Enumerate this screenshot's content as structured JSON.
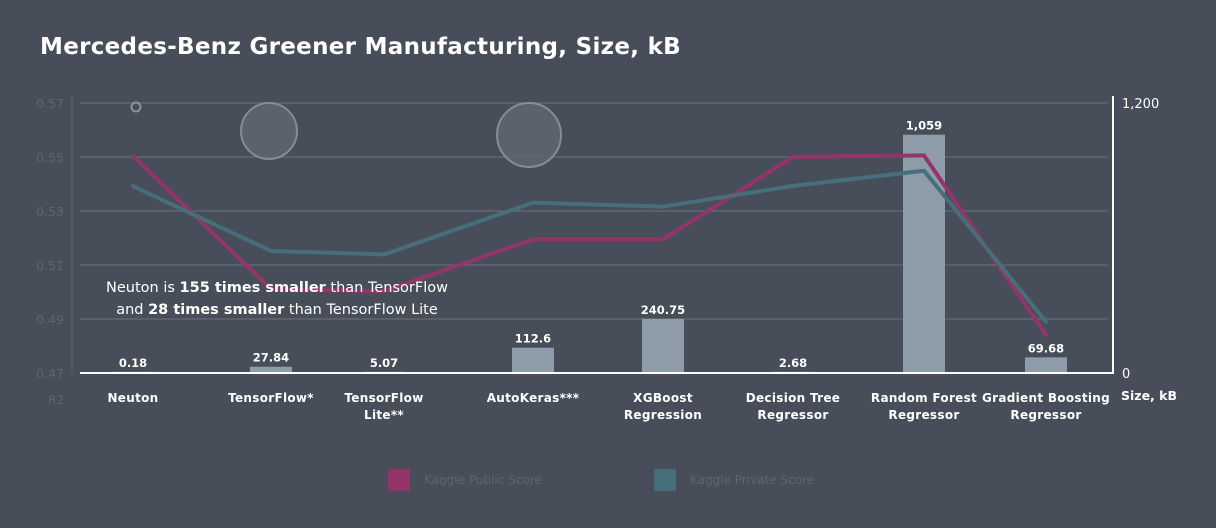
{
  "title": "Mercedes-Benz Greener Manufacturing, Size, kB",
  "annotation": {
    "line1_pre": "Neuton is ",
    "line1_bold": "155 times smaller",
    "line1_post": " than TensorFlow",
    "line2_pre": "and ",
    "line2_bold": "28 times smaller",
    "line2_post": " than TensorFlow Lite"
  },
  "colors": {
    "background": "#474e59",
    "public_score": "#93356a",
    "private_score": "#466f7b",
    "bar": "#8e9ba8",
    "axis_text": "#5c6570",
    "label_text": "#ffffff"
  },
  "chart_data": {
    "type": "bar",
    "categories": [
      [
        "Neuton"
      ],
      [
        "TensorFlow*"
      ],
      [
        "TensorFlow",
        "Lite**"
      ],
      [
        "AutoKeras***"
      ],
      [
        "XGBoost",
        "Regression"
      ],
      [
        "Decision Tree",
        "Regressor"
      ],
      [
        "Random Forest",
        "Regressor"
      ],
      [
        "Gradient Boosting",
        "Regressor"
      ]
    ],
    "bars": {
      "name": "Size, kB",
      "values": [
        0.18,
        27.84,
        5.07,
        112.6,
        240.75,
        2.68,
        1059,
        69.68
      ],
      "labels": [
        "0.18",
        "27.84",
        "5.07",
        "112.6",
        "240.75",
        "2.68",
        "1,059",
        "69.68"
      ]
    },
    "lines": [
      {
        "name": "Kaggle Public Score",
        "color": "#93356a",
        "values": [
          0.5503,
          0.5011,
          0.5003,
          0.5195,
          0.5195,
          0.55,
          0.5506,
          0.484
        ]
      },
      {
        "name": "Kaggle Private Score",
        "color": "#466f7b",
        "values": [
          0.5392,
          0.5152,
          0.5139,
          0.5331,
          0.5316,
          0.5393,
          0.5449,
          0.489
        ]
      }
    ],
    "left_axis": {
      "label": "R2",
      "ticks": [
        "0.57",
        "0.55",
        "0.53",
        "0.51",
        "0.49",
        "0.47"
      ],
      "min": 0.47,
      "max": 0.57
    },
    "right_axis": {
      "label": "Size, kB",
      "ticks": [
        "1,200",
        "0"
      ],
      "min": 0,
      "max": 1200
    },
    "grid": true,
    "legend_position": "bottom"
  },
  "legend": [
    {
      "label": "Kaggle Public Score",
      "color": "#93356a"
    },
    {
      "label": "Kaggle Private Score",
      "color": "#466f7b"
    }
  ]
}
